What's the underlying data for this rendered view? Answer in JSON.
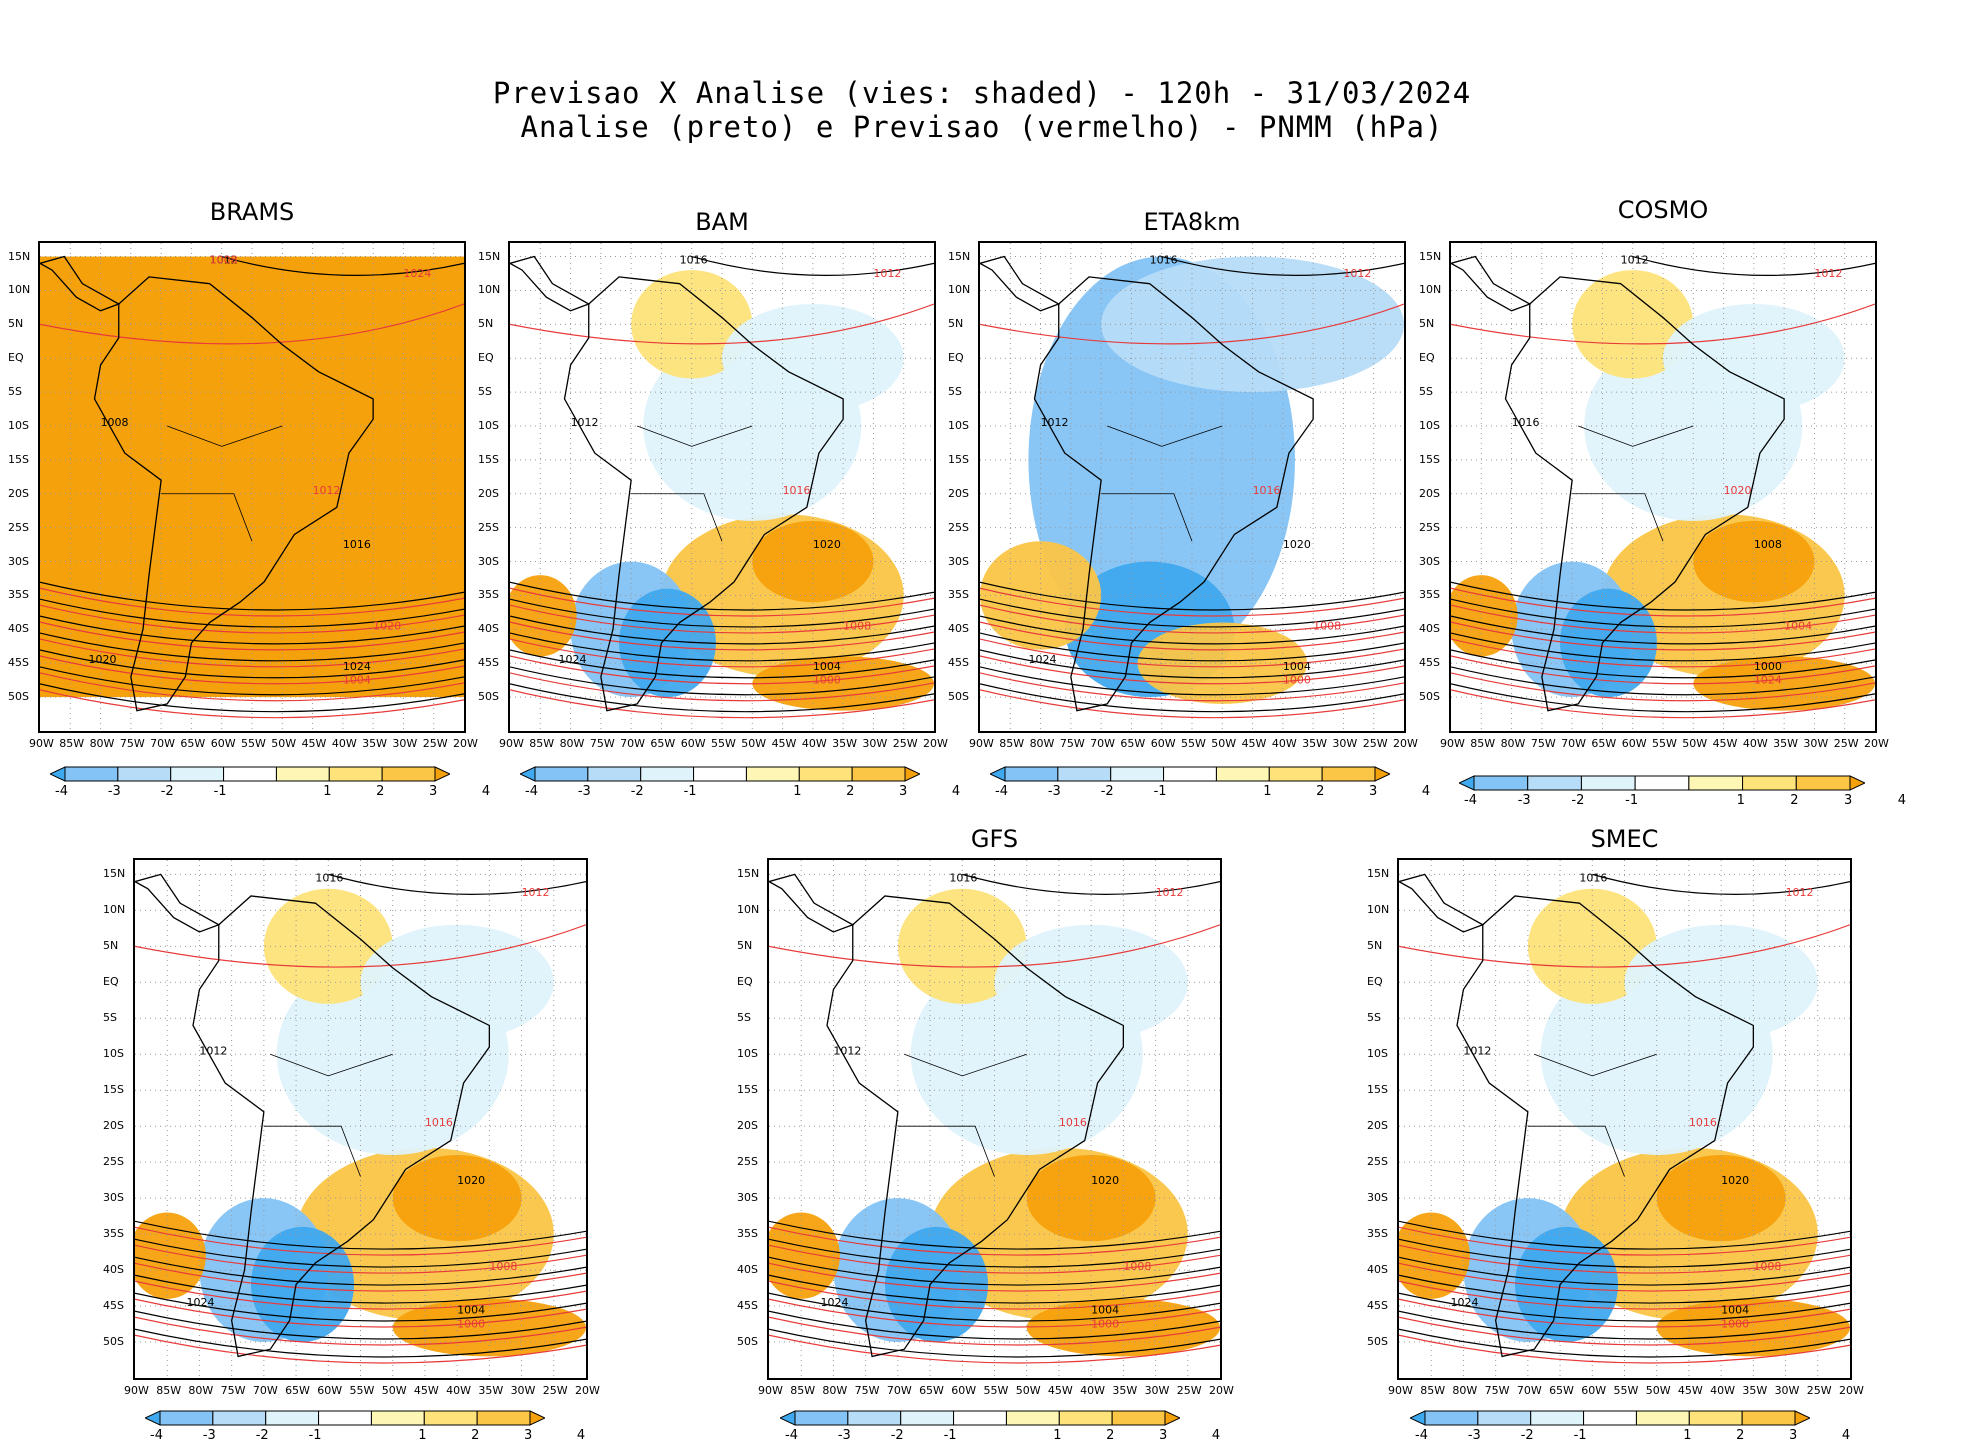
{
  "header": {
    "line1": "Previsao X Analise (vies: shaded) - 120h - 31/03/2024",
    "line2": "Analise (preto) e Previsao (vermelho) - PNMM (hPa)"
  },
  "axes": {
    "lat_labels": [
      "15N",
      "10N",
      "5N",
      "EQ",
      "5S",
      "10S",
      "15S",
      "20S",
      "25S",
      "30S",
      "35S",
      "40S",
      "45S",
      "50S"
    ],
    "lon_labels": [
      "90W",
      "85W",
      "80W",
      "75W",
      "70W",
      "65W",
      "60W",
      "55W",
      "50W",
      "45W",
      "40W",
      "35W",
      "30W",
      "25W",
      "20W"
    ]
  },
  "colorbar": {
    "labels": [
      "-4",
      "-3",
      "-2",
      "-1",
      "1",
      "2",
      "3",
      "4"
    ],
    "colors": [
      "#3fa9ef",
      "#83c3f5",
      "#b6dcf8",
      "#dff3fb",
      "#ffffff",
      "#fdf6b5",
      "#fde37a",
      "#fbc546",
      "#f5a10c"
    ]
  },
  "legend": {
    "analysis_color": "#000000",
    "forecast_color": "#e83a3a"
  },
  "panels": [
    {
      "title": "BRAMS",
      "bias": "warm-all",
      "isobars": [
        "1012",
        "1024",
        "1008",
        "1012",
        "1016",
        "1020",
        "1024",
        "1004",
        "1020",
        "1008"
      ]
    },
    {
      "title": "BAM",
      "bias": "mixed",
      "isobars": [
        "1016",
        "1012",
        "1012",
        "1016",
        "1020",
        "1008",
        "1004",
        "1000",
        "1024"
      ]
    },
    {
      "title": "ETA8km",
      "bias": "cold-continent",
      "isobars": [
        "1016",
        "1012",
        "1012",
        "1016",
        "1020",
        "1008",
        "1004",
        "1000",
        "1024"
      ]
    },
    {
      "title": "COSMO",
      "bias": "mixed",
      "isobars": [
        "1012",
        "1012",
        "1016",
        "1020",
        "1008",
        "1004",
        "1000",
        "1024"
      ]
    },
    {
      "title": "",
      "bias": "mixed",
      "isobars": [
        "1016",
        "1012",
        "1012",
        "1016",
        "1020",
        "1008",
        "1004",
        "1000",
        "1024"
      ]
    },
    {
      "title": "GFS",
      "bias": "mixed",
      "isobars": [
        "1016",
        "1012",
        "1012",
        "1016",
        "1020",
        "1008",
        "1004",
        "1000",
        "1024"
      ]
    },
    {
      "title": "SMEC",
      "bias": "mixed",
      "isobars": [
        "1016",
        "1012",
        "1012",
        "1016",
        "1020",
        "1008",
        "1004",
        "1000",
        "1024"
      ]
    }
  ]
}
